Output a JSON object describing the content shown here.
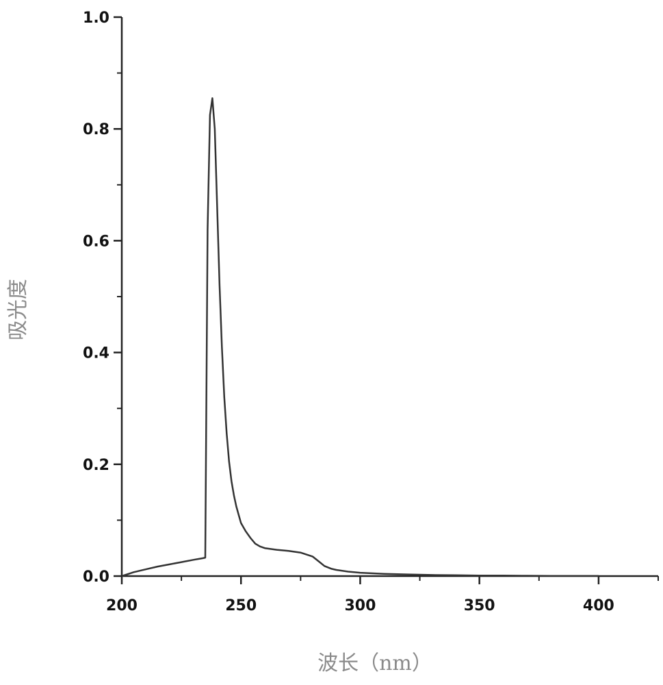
{
  "chart_data": {
    "type": "line",
    "title": "",
    "xlabel": "波长（nm）",
    "ylabel": "吸光度",
    "xlim": [
      200,
      425
    ],
    "ylim": [
      0.0,
      1.0
    ],
    "x_ticks": [
      200,
      250,
      300,
      350,
      400
    ],
    "x_tick_labels": [
      "200",
      "250",
      "300",
      "350",
      "400"
    ],
    "y_ticks": [
      0.0,
      0.2,
      0.4,
      0.6,
      0.8,
      1.0
    ],
    "y_tick_labels": [
      "0.0",
      "0.2",
      "0.4",
      "0.6",
      "0.8",
      "1.0"
    ],
    "grid": false,
    "series": [
      {
        "x": [
          200,
          205,
          210,
          215,
          220,
          225,
          230,
          234,
          235,
          236,
          237,
          238,
          239,
          240,
          241,
          242,
          243,
          244,
          245,
          246,
          247,
          248,
          249,
          250,
          252,
          254,
          256,
          258,
          260,
          265,
          270,
          275,
          280,
          283,
          285,
          288,
          290,
          295,
          300,
          310,
          320,
          330,
          340,
          350,
          360,
          370,
          380,
          390,
          400
        ],
        "y": [
          0.0,
          0.007,
          0.012,
          0.017,
          0.021,
          0.025,
          0.029,
          0.032,
          0.033,
          0.62,
          0.825,
          0.855,
          0.8,
          0.66,
          0.52,
          0.41,
          0.32,
          0.255,
          0.205,
          0.17,
          0.145,
          0.125,
          0.11,
          0.095,
          0.08,
          0.068,
          0.058,
          0.053,
          0.05,
          0.047,
          0.045,
          0.042,
          0.035,
          0.025,
          0.018,
          0.013,
          0.011,
          0.008,
          0.006,
          0.004,
          0.003,
          0.002,
          0.0015,
          0.001,
          0.0008,
          0.0006,
          0.0004,
          0.0003,
          0.0002
        ]
      }
    ]
  }
}
